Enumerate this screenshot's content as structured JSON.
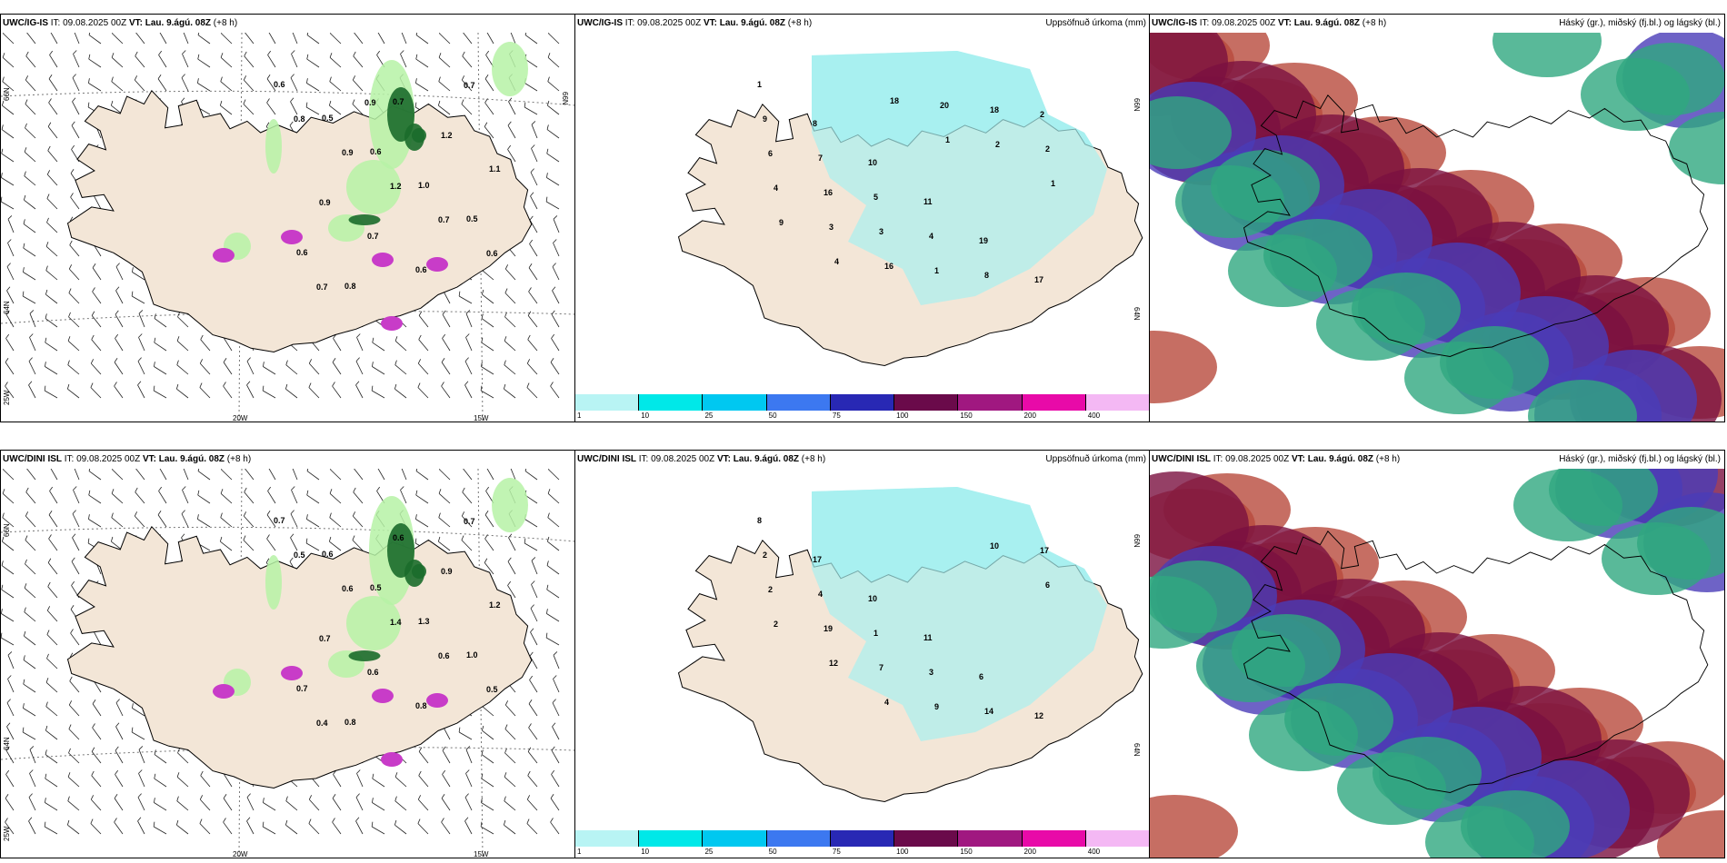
{
  "colors": {
    "land": "#f3e6d7",
    "coast": "#000000",
    "precip_light": "#a8f0f0",
    "wind_green_light": "#b6f2a6",
    "wind_green_mid": "#5cc25f",
    "wind_green_dark": "#1b6b2b",
    "magenta": "#c83cc8",
    "cloud_high": "#7a1040",
    "cloud_mid": "#4a3cb8",
    "cloud_low": "#2fa880",
    "cloud_red": "#b84a3c"
  },
  "rows": [
    {
      "model": "UWC/IG-IS",
      "panels": [
        {
          "it_label": "IT: 09.08.2025 00Z",
          "vt_label": "VT: Lau. 9.ágú. 08Z",
          "lead": "(+8 h)",
          "right_title": "",
          "lat_labels": [
            "66N",
            "64N"
          ],
          "lon_labels": [
            "20W",
            "15W"
          ],
          "lonleft_label": "25W",
          "wind_values": [
            "0.6",
            "0.5",
            "0.6",
            "1.0",
            "0.5",
            "0.6",
            "0.8",
            "0.7",
            "1.2",
            "1.1",
            "0.9",
            "0.7",
            "0.6",
            "0.7",
            "0.8",
            "0.9",
            "1.2",
            "0.7",
            "0.6",
            "0.7",
            "0.9"
          ]
        },
        {
          "it_label": "IT: 09.08.2025 00Z",
          "vt_label": "VT: Lau. 9.ágú. 08Z",
          "lead": "(+8 h)",
          "right_title": "Uppsöfnuð úrkoma (mm)",
          "lat_labels": [
            "66N",
            "64N"
          ],
          "precip_values": [
            "1",
            "8",
            "10",
            "11",
            "19",
            "17",
            "9",
            "7",
            "5",
            "4",
            "8",
            "2",
            "6",
            "16",
            "3",
            "1",
            "18",
            "2",
            "4",
            "3",
            "16",
            "20",
            "2",
            "1",
            "9",
            "4",
            "18",
            "1"
          ]
        },
        {
          "it_label": "IT: 09.08.2025 00Z",
          "vt_label": "VT: Lau. 9.ágú. 08Z",
          "lead": "(+8 h)",
          "right_title": "Háský (gr.), miðský (fj.bl.) og lágský (bl.)"
        }
      ]
    },
    {
      "model": "UWC/DINI ISL",
      "panels": [
        {
          "it_label": "IT: 09.08.2025 00Z",
          "vt_label": "VT: Lau. 9.ágú. 08Z",
          "lead": "(+8 h)",
          "right_title": "",
          "lat_labels": [
            "66N",
            "64N"
          ],
          "lon_labels": [
            "20W",
            "15W"
          ],
          "lonleft_label": "25W",
          "wind_values": [
            "0.7",
            "0.6",
            "0.5",
            "1.3",
            "1.0",
            "0.7",
            "0.8",
            "0.6",
            "0.9",
            "1.2",
            "0.7",
            "0.6",
            "0.8",
            "0.7",
            "0.5",
            "0.6",
            "1.4",
            "0.6",
            "0.5",
            "0.4"
          ]
        },
        {
          "it_label": "IT: 09.08.2025 00Z",
          "vt_label": "VT: Lau. 9.ágú. 08Z",
          "lead": "(+8 h)",
          "right_title": "Uppsöfnuð úrkoma (mm)",
          "lat_labels": [
            "66N",
            "64N"
          ],
          "precip_values": [
            "8",
            "17",
            "10",
            "11",
            "6",
            "12",
            "2",
            "4",
            "1",
            "3",
            "14",
            "17",
            "2",
            "19",
            "7",
            "9",
            "10",
            "6",
            "2",
            "12",
            "4"
          ]
        },
        {
          "it_label": "IT: 09.08.2025 00Z",
          "vt_label": "VT: Lau. 9.ágú. 08Z",
          "lead": "(+8 h)",
          "right_title": "Háský (gr.), miðský (fj.bl.) og lágský (bl.)"
        }
      ]
    }
  ],
  "colorbar": {
    "labels": [
      "1",
      "10",
      "25",
      "50",
      "75",
      "100",
      "150",
      "200",
      "400"
    ],
    "colors": [
      "#b8f4f4",
      "#00e8e8",
      "#00c8f0",
      "#3c78f0",
      "#2828b4",
      "#6a0a4a",
      "#a01880",
      "#e80aa8",
      "#f4b8f4"
    ]
  }
}
